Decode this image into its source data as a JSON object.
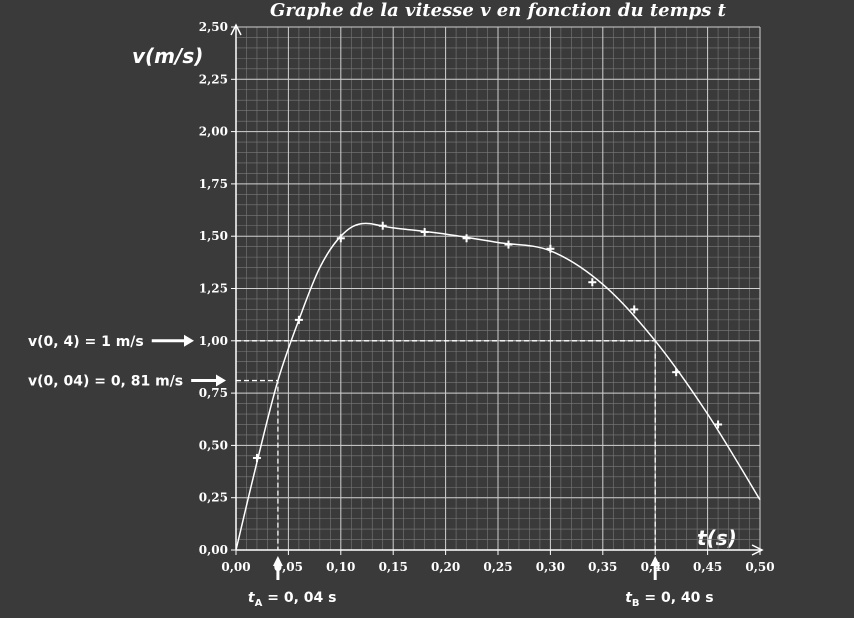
{
  "chart_data": {
    "type": "scatter",
    "title": "Graphe de la vitesse v en fonction du temps t",
    "y_label": "v(m/s)",
    "x_label": "t(s)",
    "xlim": [
      0,
      0.5
    ],
    "ylim": [
      0,
      2.5
    ],
    "xticks": [
      {
        "value": 0,
        "label": "0,00"
      },
      {
        "value": 0.05,
        "label": "0,05"
      },
      {
        "value": 0.1,
        "label": "0,10"
      },
      {
        "value": 0.15,
        "label": "0,15"
      },
      {
        "value": 0.2,
        "label": "0,20"
      },
      {
        "value": 0.25,
        "label": "0,25"
      },
      {
        "value": 0.3,
        "label": "0,30"
      },
      {
        "value": 0.35,
        "label": "0,35"
      },
      {
        "value": 0.4,
        "label": "0,40"
      },
      {
        "value": 0.45,
        "label": "0,45"
      },
      {
        "value": 0.5,
        "label": "0,50"
      }
    ],
    "yticks": [
      {
        "value": 0,
        "label": "0,00"
      },
      {
        "value": 0.25,
        "label": "0,25"
      },
      {
        "value": 0.5,
        "label": "0,50"
      },
      {
        "value": 0.75,
        "label": "0,75"
      },
      {
        "value": 1,
        "label": "1,00"
      },
      {
        "value": 1.25,
        "label": "1,25"
      },
      {
        "value": 1.5,
        "label": "1,50"
      },
      {
        "value": 1.75,
        "label": "1,75"
      },
      {
        "value": 2,
        "label": "2,00"
      },
      {
        "value": 2.25,
        "label": "2,25"
      },
      {
        "value": 2.5,
        "label": "2,50"
      }
    ],
    "grid": true,
    "minor_grid": {
      "x": 0.01,
      "y": 0.05
    },
    "series": [
      {
        "color": "#ffffff",
        "x": [
          0.02,
          0.06,
          0.1,
          0.14,
          0.18,
          0.22,
          0.26,
          0.3,
          0.34,
          0.38,
          0.42,
          0.46
        ],
        "values": [
          0.44,
          1.1,
          1.49,
          1.55,
          1.52,
          1.49,
          1.46,
          1.44,
          1.28,
          1.15,
          0.85,
          0.6
        ]
      }
    ],
    "curve": {
      "color": "#ffffff",
      "x": [
        0,
        0.02,
        0.04,
        0.06,
        0.08,
        0.1,
        0.12,
        0.15,
        0.2,
        0.25,
        0.3,
        0.35,
        0.4,
        0.45,
        0.5
      ],
      "values": [
        0,
        0.42,
        0.81,
        1.1,
        1.35,
        1.5,
        1.56,
        1.54,
        1.51,
        1.47,
        1.43,
        1.27,
        1.0,
        0.65,
        0.24
      ]
    },
    "guides": [
      {
        "x": 0.4,
        "y": 1,
        "v_label": "v(0, 4) = 1 m/s",
        "t_label": {
          "main": "t",
          "sub": "B",
          "rest": " = 0, 40 s"
        }
      },
      {
        "x": 0.04,
        "y": 0.81,
        "v_label": "v(0, 04) = 0, 81 m/s",
        "t_label": {
          "main": "t",
          "sub": "A",
          "rest": " = 0, 04 s"
        }
      }
    ]
  }
}
